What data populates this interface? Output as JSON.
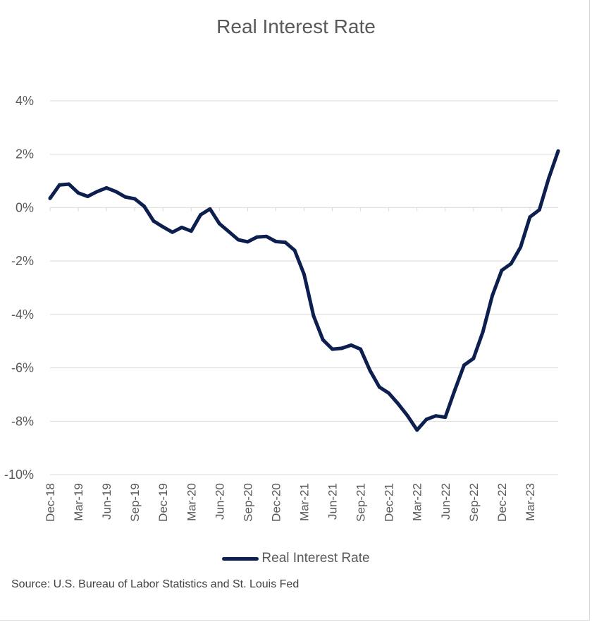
{
  "chart_data": {
    "type": "line",
    "title": "Real Interest Rate",
    "ylim": [
      -10,
      4
    ],
    "yticks": [
      {
        "value": 4,
        "label": "4%"
      },
      {
        "value": 2,
        "label": "2%"
      },
      {
        "value": 0,
        "label": "0%"
      },
      {
        "value": -2,
        "label": "-2%"
      },
      {
        "value": -4,
        "label": "-4%"
      },
      {
        "value": -6,
        "label": "-6%"
      },
      {
        "value": -8,
        "label": "-8%"
      },
      {
        "value": -10,
        "label": "-10%"
      }
    ],
    "x": [
      "Dec-18",
      "Jan-19",
      "Feb-19",
      "Mar-19",
      "Apr-19",
      "May-19",
      "Jun-19",
      "Jul-19",
      "Aug-19",
      "Sep-19",
      "Oct-19",
      "Nov-19",
      "Dec-19",
      "Jan-20",
      "Feb-20",
      "Mar-20",
      "Apr-20",
      "May-20",
      "Jun-20",
      "Jul-20",
      "Aug-20",
      "Sep-20",
      "Oct-20",
      "Nov-20",
      "Dec-20",
      "Jan-21",
      "Feb-21",
      "Mar-21",
      "Apr-21",
      "May-21",
      "Jun-21",
      "Jul-21",
      "Aug-21",
      "Sep-21",
      "Oct-21",
      "Nov-21",
      "Dec-21",
      "Jan-22",
      "Feb-22",
      "Mar-22",
      "Apr-22",
      "May-22",
      "Jun-22",
      "Jul-22",
      "Aug-22",
      "Sep-22",
      "Oct-22",
      "Nov-22",
      "Dec-22",
      "Jan-23",
      "Feb-23",
      "Mar-23",
      "Apr-23",
      "May-23",
      "Jun-23"
    ],
    "xtick_labels": [
      "Dec-18",
      "Mar-19",
      "Jun-19",
      "Sep-19",
      "Dec-19",
      "Mar-20",
      "Jun-20",
      "Sep-20",
      "Dec-20",
      "Mar-21",
      "Jun-21",
      "Sep-21",
      "Dec-21",
      "Mar-22",
      "Jun-22",
      "Sep-22",
      "Dec-22",
      "Mar-23"
    ],
    "series": [
      {
        "name": "Real Interest Rate",
        "color": "#0d1f4f",
        "values": [
          0.35,
          0.85,
          0.88,
          0.55,
          0.42,
          0.6,
          0.74,
          0.6,
          0.4,
          0.33,
          0.05,
          -0.5,
          -0.72,
          -0.92,
          -0.74,
          -0.88,
          -0.27,
          -0.05,
          -0.6,
          -0.9,
          -1.2,
          -1.28,
          -1.1,
          -1.08,
          -1.27,
          -1.3,
          -1.6,
          -2.5,
          -4.05,
          -4.95,
          -5.3,
          -5.27,
          -5.15,
          -5.3,
          -6.1,
          -6.72,
          -6.95,
          -7.35,
          -7.8,
          -8.33,
          -7.93,
          -7.8,
          -7.85,
          -6.85,
          -5.9,
          -5.65,
          -4.65,
          -3.3,
          -2.35,
          -2.1,
          -1.48,
          -0.35,
          -0.08,
          1.1,
          2.12
        ]
      }
    ],
    "legend": "bottom",
    "grid": true
  },
  "source_note": "Source: U.S. Bureau of Labor Statistics and St. Louis Fed"
}
